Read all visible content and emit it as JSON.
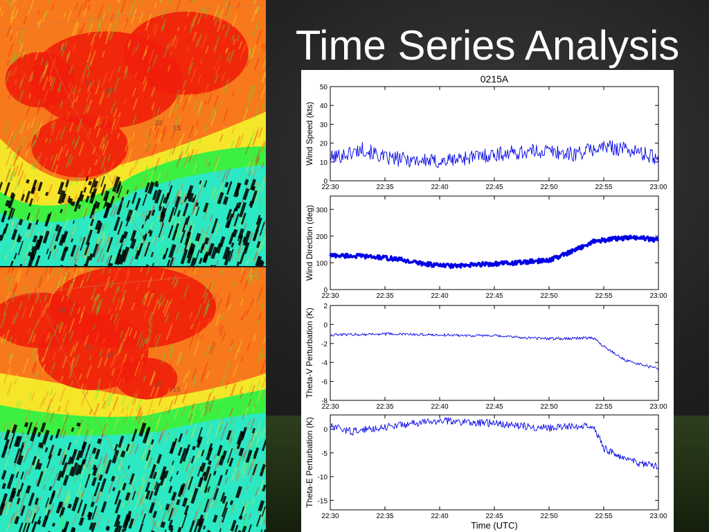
{
  "slide": {
    "title": "Time Series Analysis",
    "radar_top_labels": [
      "14",
      "16",
      "19",
      "22",
      "15"
    ],
    "radar_bottom_labels": [
      "14",
      "16",
      "18",
      "22",
      "15"
    ]
  },
  "colors": {
    "series": "#0000e6",
    "title_text": "#ffffff",
    "radar_red": "#f01e0a",
    "radar_orange": "#f8781c",
    "radar_yellow": "#f5e62a",
    "radar_green": "#3cf042",
    "radar_cyan": "#2ce8c4",
    "radar_black": "#000000"
  },
  "chart_data": [
    {
      "type": "line",
      "title": "0215A",
      "xlabel": "",
      "ylabel": "Wind Speed (kts)",
      "xlim": [
        "22:30",
        "23:00"
      ],
      "ylim": [
        0,
        50
      ],
      "yticks": [
        0,
        10,
        20,
        30,
        40,
        50
      ],
      "xticks": [
        "22:30",
        "22:35",
        "22:40",
        "22:45",
        "22:50",
        "22:55",
        "23:00"
      ],
      "x": [
        "22:30",
        "22:32",
        "22:33",
        "22:35",
        "22:38",
        "22:40",
        "22:42",
        "22:45",
        "22:47",
        "22:50",
        "22:52",
        "22:55",
        "22:57",
        "23:00"
      ],
      "y": [
        12,
        15,
        17,
        12,
        11,
        10,
        12,
        14,
        15,
        16,
        14,
        18,
        17,
        12
      ],
      "noise": 4,
      "thick": false
    },
    {
      "type": "line",
      "title": "",
      "xlabel": "",
      "ylabel": "Wind Direction (deg)",
      "xlim": [
        "22:30",
        "23:00"
      ],
      "ylim": [
        0,
        350
      ],
      "yticks": [
        0,
        100,
        200,
        300
      ],
      "xticks": [
        "22:30",
        "22:35",
        "22:40",
        "22:45",
        "22:50",
        "22:55",
        "23:00"
      ],
      "x": [
        "22:30",
        "22:33",
        "22:36",
        "22:38",
        "22:40",
        "22:42",
        "22:44",
        "22:47",
        "22:50",
        "22:52",
        "22:54",
        "22:56",
        "22:58",
        "23:00"
      ],
      "y": [
        128,
        125,
        115,
        100,
        90,
        88,
        95,
        100,
        110,
        140,
        180,
        190,
        195,
        185
      ],
      "noise": 8,
      "thick": true
    },
    {
      "type": "line",
      "title": "",
      "xlabel": "",
      "ylabel": "Theta-V Perturbation (K)",
      "xlim": [
        "22:30",
        "23:00"
      ],
      "ylim": [
        -8,
        2
      ],
      "yticks": [
        -8,
        -6,
        -4,
        -2,
        0,
        2
      ],
      "xticks": [
        "22:30",
        "22:35",
        "22:40",
        "22:45",
        "22:50",
        "22:55",
        "23:00"
      ],
      "x": [
        "22:30",
        "22:35",
        "22:40",
        "22:45",
        "22:48",
        "22:50",
        "22:54",
        "22:55",
        "22:57",
        "23:00"
      ],
      "y": [
        -1.1,
        -1.0,
        -1.1,
        -1.2,
        -1.4,
        -1.5,
        -1.4,
        -2.3,
        -3.8,
        -4.7
      ],
      "noise": 0.15,
      "thick": false
    },
    {
      "type": "line",
      "title": "",
      "xlabel": "Time (UTC)",
      "ylabel": "Theta-E Perturbation (K)",
      "xlim": [
        "22:30",
        "23:00"
      ],
      "ylim": [
        -17,
        3
      ],
      "yticks": [
        -15,
        -10,
        -5,
        0
      ],
      "xticks": [
        "22:30",
        "22:35",
        "22:40",
        "22:45",
        "22:50",
        "22:55",
        "23:00"
      ],
      "x": [
        "22:30",
        "22:32",
        "22:35",
        "22:40",
        "22:45",
        "22:50",
        "22:54",
        "22:55",
        "22:57",
        "23:00"
      ],
      "y": [
        0.5,
        -0.5,
        0.5,
        1.8,
        1.2,
        0.2,
        1.0,
        -4.0,
        -6.5,
        -8.0
      ],
      "noise": 0.8,
      "thick": false
    }
  ]
}
